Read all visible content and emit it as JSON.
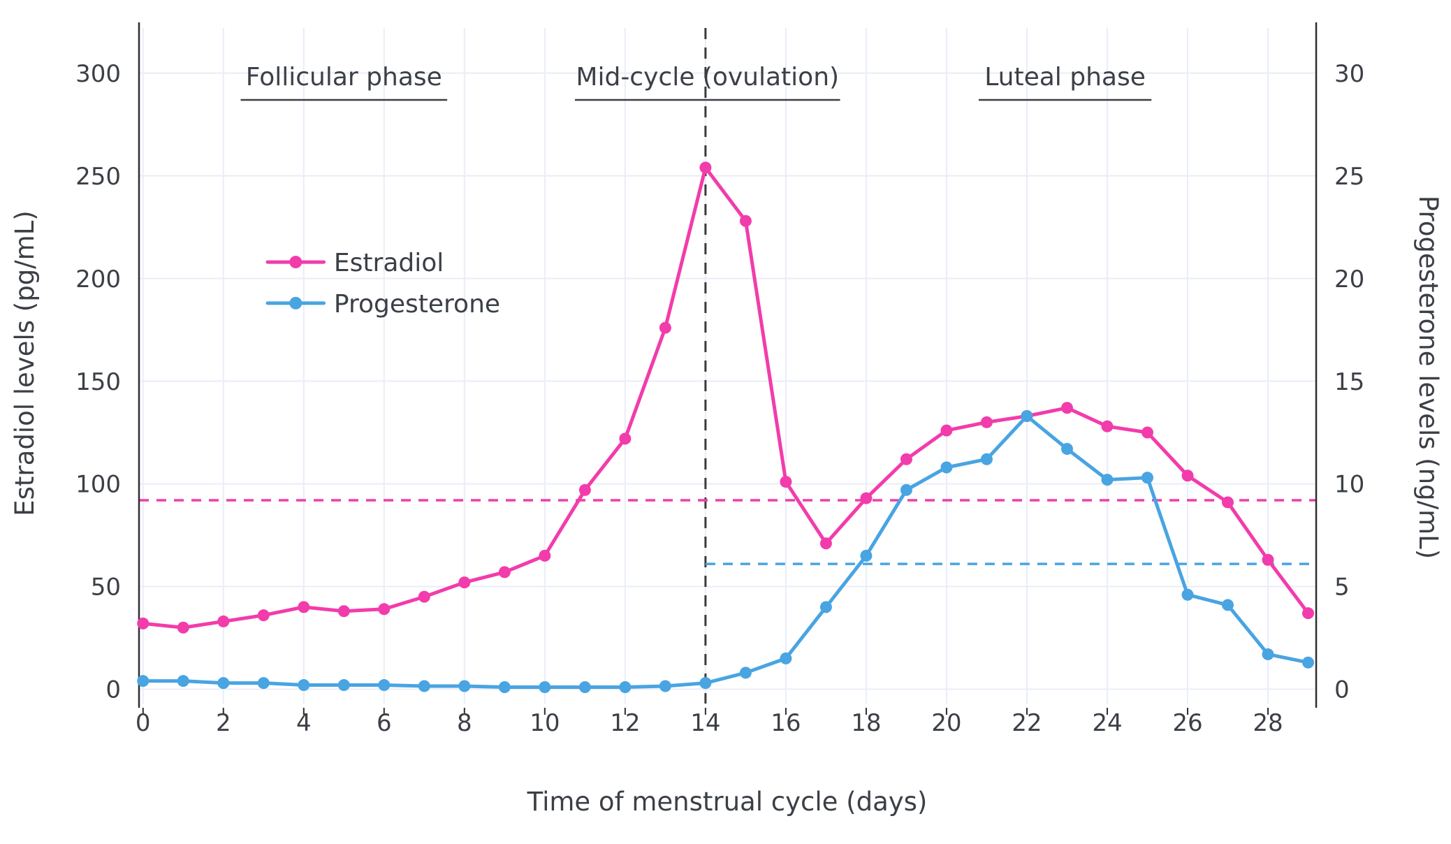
{
  "chart_data": {
    "type": "line",
    "title": "",
    "xlabel": "Time of menstrual cycle (days)",
    "ylabel_left": "Estradiol levels (pg/mL)",
    "ylabel_right": "Progesterone levels (ng/mL)",
    "x": [
      0,
      1,
      2,
      3,
      4,
      5,
      6,
      7,
      8,
      9,
      10,
      11,
      12,
      13,
      14,
      15,
      16,
      17,
      18,
      19,
      20,
      21,
      22,
      23,
      24,
      25,
      26,
      27,
      28,
      29
    ],
    "series": [
      {
        "name": "Estradiol",
        "axis": "left",
        "color": "#F23CAB",
        "values": [
          32,
          30,
          33,
          36,
          40,
          38,
          39,
          45,
          52,
          57,
          65,
          97,
          122,
          176,
          254,
          228,
          101,
          71,
          93,
          112,
          126,
          130,
          133,
          137,
          128,
          125,
          104,
          91,
          63,
          37
        ]
      },
      {
        "name": "Progesterone",
        "axis": "right",
        "color": "#49A4E2",
        "values": [
          0.4,
          0.4,
          0.3,
          0.3,
          0.2,
          0.2,
          0.2,
          0.15,
          0.15,
          0.1,
          0.1,
          0.1,
          0.1,
          0.15,
          0.3,
          0.8,
          1.5,
          4.0,
          6.5,
          9.7,
          10.8,
          11.2,
          13.3,
          11.7,
          10.2,
          10.3,
          4.6,
          4.1,
          1.7,
          1.3
        ]
      }
    ],
    "x_ticks": [
      0,
      2,
      4,
      6,
      8,
      10,
      12,
      14,
      16,
      18,
      20,
      22,
      24,
      26,
      28
    ],
    "left_ticks": [
      0,
      50,
      100,
      150,
      200,
      250,
      300
    ],
    "right_ticks": [
      0,
      5,
      10,
      15,
      20,
      25,
      30
    ],
    "x_range": [
      -0.1,
      29.2
    ],
    "left_range": [
      -7,
      322
    ],
    "right_range": [
      -0.7,
      32.2
    ],
    "grid": true,
    "legend_position": "upper-left-inside",
    "legend": {
      "entries": [
        "Estradiol",
        "Progesterone"
      ]
    },
    "annotations": {
      "phases": [
        {
          "label": "Follicular phase",
          "center_day": 5.0,
          "underline_days": [
            2.43,
            7.57
          ]
        },
        {
          "label": "Mid-cycle (ovulation)",
          "center_day": 14.05,
          "underline_days": [
            10.75,
            17.35
          ]
        },
        {
          "label": "Luteal phase",
          "center_day": 22.95,
          "underline_days": [
            20.8,
            25.1
          ]
        }
      ],
      "vline_day": 14,
      "estradiol_baseline_value": 92,
      "progesterone_baseline_value": 6.1,
      "progesterone_baseline_start_day": 14
    },
    "colors": {
      "estradiol": "#F23CAB",
      "progesterone": "#49A4E2",
      "grid": "#EAEDF8",
      "axis": "#2e2e2e",
      "text": "#3b3f46",
      "dashed_black": "#3a3a3a"
    }
  }
}
